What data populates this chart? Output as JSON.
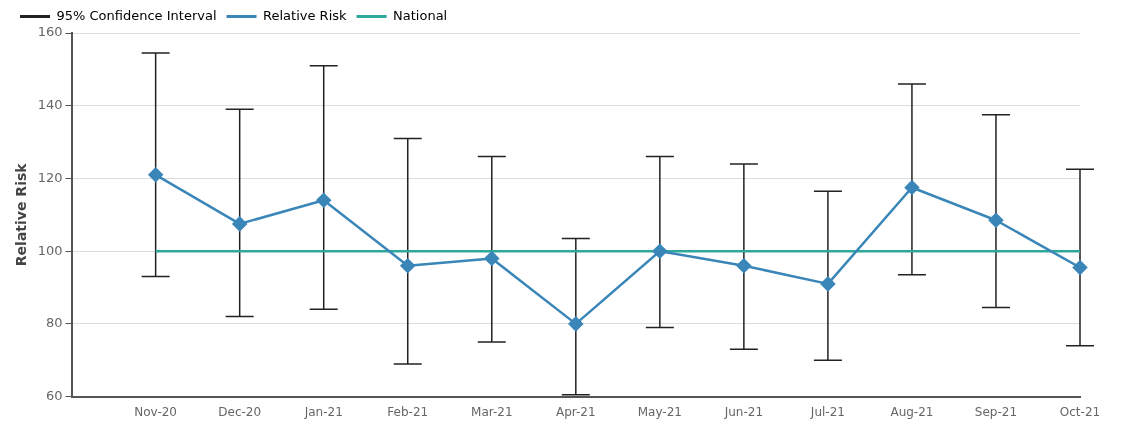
{
  "chart_data": {
    "type": "line",
    "ylabel": "Relative Risk",
    "annotations": [
      "95% Confidence Interval"
    ],
    "categories": [
      null,
      "Nov-20",
      "Dec-20",
      "Jan-21",
      "Feb-21",
      "Mar-21",
      "Apr-21",
      "May-21",
      "Jun-21",
      "Jul-21",
      "Aug-21",
      "Sep-21",
      "Oct-21"
    ],
    "series": [
      {
        "name": "Relative Risk",
        "marker": "diamond",
        "color": "#3a86b8",
        "values": [
          null,
          121,
          107.5,
          114,
          96,
          98,
          80,
          100,
          96,
          91,
          117.5,
          108.5,
          95.5
        ],
        "errors": [
          null,
          [
            93,
            154.5
          ],
          [
            82,
            139
          ],
          [
            84,
            151
          ],
          [
            69,
            131
          ],
          [
            75,
            126
          ],
          [
            60.5,
            103.5
          ],
          [
            79,
            126
          ],
          [
            73,
            124
          ],
          [
            70,
            116.5
          ],
          [
            93.5,
            146
          ],
          [
            84.5,
            137.5
          ],
          [
            74,
            122.5
          ]
        ]
      },
      {
        "name": "National",
        "marker": "none",
        "color": "#2ea89a",
        "values": [
          null,
          100,
          100,
          100,
          100,
          100,
          100,
          100,
          100,
          100,
          100,
          100,
          100
        ]
      }
    ],
    "ylim": [
      60,
      160
    ],
    "yticks": [
      60,
      80,
      100,
      120,
      140,
      160
    ],
    "grid": "y",
    "legend": "top left"
  }
}
